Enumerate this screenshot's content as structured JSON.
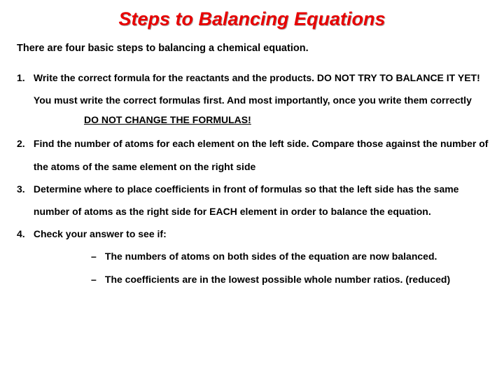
{
  "colors": {
    "title_color": "#e80000",
    "text_color": "#000000",
    "background": "#ffffff"
  },
  "typography": {
    "title_fontsize": 27,
    "title_style": "bold italic",
    "body_fontsize": 14,
    "body_weight": "bold",
    "line_height": 2.3
  },
  "title": "Steps to Balancing Equations",
  "intro": "There are four basic steps to balancing a chemical equation.",
  "steps": {
    "s1": {
      "num": "1.",
      "text": "Write the correct formula for the reactants and the products. DO NOT TRY TO BALANCE IT YET!  You must write the correct formulas first.  And most importantly, once you write them correctly"
    },
    "warn": "DO NOT CHANGE THE FORMULAS!",
    "s2": {
      "num": "2.",
      "text": "Find the number of atoms for each element on the left side.  Compare those against the number of the atoms of the same element on the right side"
    },
    "s3": {
      "num": "3.",
      "text": "Determine where to place coefficients in front of formulas so that the left side has the same number of atoms as the right side for EACH element in order to balance the equation."
    },
    "s4": {
      "num": "4.",
      "text": "Check your answer to see if:",
      "sub1": "The numbers of atoms on both sides of the equation are now balanced.",
      "sub2": "The coefficients are in the lowest possible whole number ratios. (reduced)"
    }
  }
}
